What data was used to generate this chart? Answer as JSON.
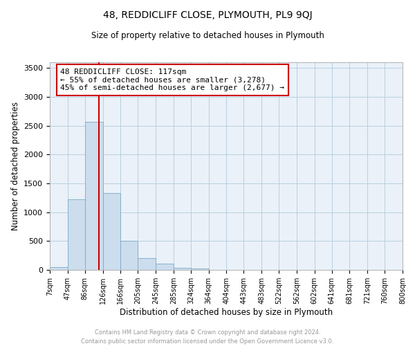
{
  "title": "48, REDDICLIFF CLOSE, PLYMOUTH, PL9 9QJ",
  "subtitle": "Size of property relative to detached houses in Plymouth",
  "xlabel": "Distribution of detached houses by size in Plymouth",
  "ylabel": "Number of detached properties",
  "bar_color": "#ccdded",
  "bar_edge_color": "#7aaac8",
  "grid_color": "#b8cfe0",
  "background_color": "#eaf1f8",
  "vline_x": 117,
  "vline_color": "#cc0000",
  "annotation_line1": "48 REDDICLIFF CLOSE: 117sqm",
  "annotation_line2": "← 55% of detached houses are smaller (3,278)",
  "annotation_line3": "45% of semi-detached houses are larger (2,677) →",
  "annotation_box_color": "#ffffff",
  "annotation_box_edge": "#cc0000",
  "bin_edges": [
    7,
    47,
    86,
    126,
    166,
    205,
    245,
    285,
    324,
    364,
    404,
    443,
    483,
    522,
    562,
    602,
    641,
    681,
    721,
    760,
    800
  ],
  "bar_heights": [
    50,
    1230,
    2570,
    1330,
    500,
    200,
    110,
    40,
    20,
    5,
    5,
    2,
    2,
    0,
    0,
    0,
    0,
    0,
    0,
    0
  ],
  "ylim": [
    0,
    3600
  ],
  "yticks": [
    0,
    500,
    1000,
    1500,
    2000,
    2500,
    3000,
    3500
  ],
  "footer_line1": "Contains HM Land Registry data © Crown copyright and database right 2024.",
  "footer_line2": "Contains public sector information licensed under the Open Government Licence v3.0.",
  "footer_color": "#999999"
}
